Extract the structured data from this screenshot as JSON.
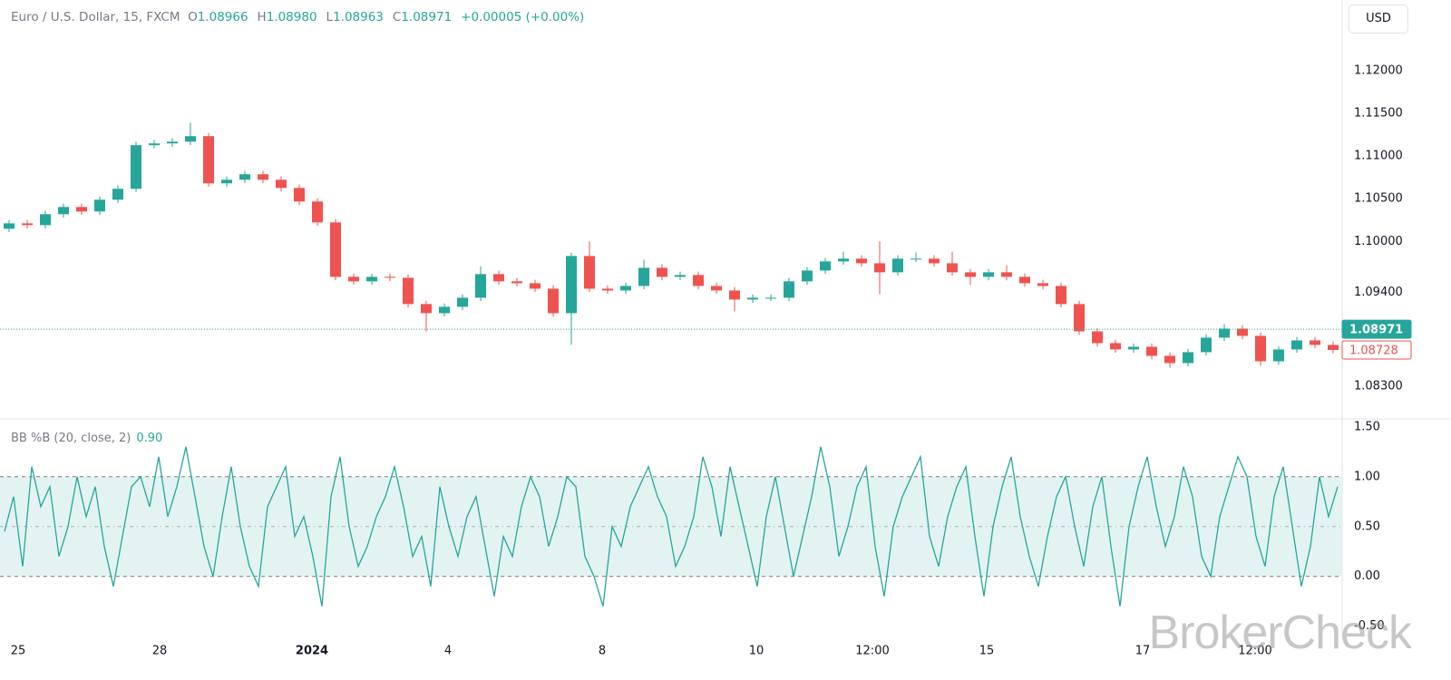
{
  "header": {
    "symbol": "Euro / U.S. Dollar, 15, FXCM",
    "fields": [
      {
        "key": "O",
        "value": "1.08966"
      },
      {
        "key": "H",
        "value": "1.08980"
      },
      {
        "key": "L",
        "value": "1.08963"
      },
      {
        "key": "C",
        "value": "1.08971"
      }
    ],
    "change": "+0.00005 (+0.00%)"
  },
  "currency": "USD",
  "watermark": "BrokerCheck",
  "chart_data": [
    {
      "type": "candlestick",
      "up_color": "#26a69a",
      "down_color": "#ef5350",
      "xlim": [
        0,
        74
      ],
      "xticks": [
        {
          "value": 1.0,
          "label": "25"
        },
        {
          "value": 8.8,
          "label": "28"
        },
        {
          "value": 17.2,
          "label": "2024",
          "bold": true
        },
        {
          "value": 24.7,
          "label": "4"
        },
        {
          "value": 33.2,
          "label": "8"
        },
        {
          "value": 41.7,
          "label": "10"
        },
        {
          "value": 48.1,
          "label": "12:00"
        },
        {
          "value": 54.4,
          "label": "15"
        },
        {
          "value": 63.0,
          "label": "17"
        },
        {
          "value": 69.2,
          "label": "12:00"
        }
      ],
      "ylim": [
        1.0792,
        1.1283
      ],
      "yticks": [
        {
          "value": 1.12,
          "label": "1.12000"
        },
        {
          "value": 1.115,
          "label": "1.11500"
        },
        {
          "value": 1.11,
          "label": "1.11000"
        },
        {
          "value": 1.105,
          "label": "1.10500"
        },
        {
          "value": 1.1,
          "label": "1.10000"
        },
        {
          "value": 1.094,
          "label": "1.09400"
        },
        {
          "value": 1.083,
          "label": "1.08300"
        }
      ],
      "price_markers": [
        {
          "value": 1.08971,
          "label": "1.08971",
          "color": "#26a69a",
          "dotted_line": true
        },
        {
          "value": 1.08728,
          "label": "1.08728",
          "color": "#ef5350",
          "dotted_line": false
        }
      ],
      "open": [
        1.10149,
        1.10212,
        1.10191,
        1.10319,
        1.10404,
        1.10351,
        1.10489,
        1.10617,
        1.11128,
        1.11149,
        1.1117,
        1.11234,
        1.10681,
        1.10723,
        1.10787,
        1.10723,
        1.10627,
        1.10468,
        1.10223,
        1.09585,
        1.09532,
        1.09585,
        1.09574,
        1.09266,
        1.09159,
        1.09234,
        1.0934,
        1.09617,
        1.09532,
        1.0951,
        1.09446,
        1.09159,
        1.09829,
        1.09446,
        1.09425,
        1.09478,
        1.09691,
        1.09585,
        1.09606,
        1.09478,
        1.09425,
        1.09319,
        1.0934,
        1.0934,
        1.09532,
        1.09659,
        1.09766,
        1.09798,
        1.09744,
        1.09638,
        1.09798,
        1.09798,
        1.09744,
        1.09638,
        1.09585,
        1.09638,
        1.09585,
        1.0951,
        1.09478,
        1.09266,
        1.08946,
        1.08808,
        1.08734,
        1.08765,
        1.08659,
        1.08574,
        1.08702,
        1.08872,
        1.08978,
        1.08893,
        1.08595,
        1.08734,
        1.0884,
        1.08787
      ],
      "high": [
        1.10252,
        1.10252,
        1.10359,
        1.10444,
        1.10444,
        1.10529,
        1.10657,
        1.11168,
        1.11189,
        1.1121,
        1.11393,
        1.11274,
        1.10763,
        1.10827,
        1.10827,
        1.10763,
        1.10667,
        1.10508,
        1.10263,
        1.09625,
        1.09625,
        1.09625,
        1.09614,
        1.09306,
        1.09274,
        1.0938,
        1.09708,
        1.09657,
        1.09572,
        1.0955,
        1.09486,
        1.09869,
        1.1,
        1.09486,
        1.09518,
        1.09787,
        1.09731,
        1.09646,
        1.09646,
        1.09518,
        1.09465,
        1.0938,
        1.0938,
        1.09572,
        1.09699,
        1.09806,
        1.0988,
        1.09838,
        1.1,
        1.09838,
        1.0987,
        1.09838,
        1.0988,
        1.09678,
        1.09678,
        1.0972,
        1.09625,
        1.0955,
        1.09518,
        1.09306,
        1.08986,
        1.08848,
        1.08805,
        1.08805,
        1.08699,
        1.08742,
        1.08912,
        1.0903,
        1.09018,
        1.08933,
        1.08774,
        1.0888,
        1.0888,
        1.08827
      ],
      "low": [
        1.10109,
        1.10151,
        1.10151,
        1.10279,
        1.10311,
        1.10311,
        1.10449,
        1.10577,
        1.11088,
        1.11109,
        1.1113,
        1.10641,
        1.10641,
        1.10683,
        1.10683,
        1.10587,
        1.10428,
        1.10183,
        1.09545,
        1.09492,
        1.09492,
        1.09534,
        1.09226,
        1.08946,
        1.09119,
        1.09194,
        1.093,
        1.09492,
        1.0947,
        1.09406,
        1.09119,
        1.08787,
        1.09406,
        1.09385,
        1.09385,
        1.09438,
        1.09545,
        1.09545,
        1.09438,
        1.09385,
        1.0918,
        1.09279,
        1.093,
        1.093,
        1.09492,
        1.09619,
        1.09726,
        1.09704,
        1.0938,
        1.09598,
        1.09758,
        1.09704,
        1.09598,
        1.0949,
        1.09545,
        1.09545,
        1.0947,
        1.09438,
        1.09226,
        1.08906,
        1.08768,
        1.08694,
        1.08694,
        1.08619,
        1.0852,
        1.08534,
        1.08662,
        1.08832,
        1.08853,
        1.0854,
        1.08555,
        1.08694,
        1.08747,
        1.08688
      ],
      "close": [
        1.10212,
        1.10191,
        1.10319,
        1.10404,
        1.10351,
        1.10489,
        1.10617,
        1.11128,
        1.11149,
        1.1117,
        1.11234,
        1.10681,
        1.10723,
        1.10787,
        1.10723,
        1.10627,
        1.10468,
        1.10223,
        1.09585,
        1.09532,
        1.09585,
        1.09574,
        1.09266,
        1.09159,
        1.09234,
        1.0934,
        1.09617,
        1.09532,
        1.0951,
        1.09446,
        1.09159,
        1.09829,
        1.09446,
        1.09425,
        1.09478,
        1.09691,
        1.09585,
        1.09606,
        1.09478,
        1.09425,
        1.09319,
        1.0934,
        1.0934,
        1.09532,
        1.09659,
        1.09766,
        1.09798,
        1.09744,
        1.09638,
        1.09798,
        1.09798,
        1.09744,
        1.09638,
        1.09585,
        1.09638,
        1.09585,
        1.0951,
        1.09478,
        1.09266,
        1.08946,
        1.08808,
        1.08734,
        1.08765,
        1.08659,
        1.08574,
        1.08702,
        1.08872,
        1.08978,
        1.08893,
        1.08595,
        1.08734,
        1.0884,
        1.08787,
        1.08728
      ]
    },
    {
      "type": "line",
      "name": "BB %B (20, close, 2)",
      "last_value": "0.90",
      "color": "#26a69a",
      "band_color": "#e3f3f1",
      "upper_band": 1,
      "middle_band": 0.5,
      "lower_band": 0,
      "xlim": [
        0,
        74
      ],
      "ylim": [
        -0.63,
        1.58
      ],
      "yticks": [
        {
          "value": 1.5,
          "label": "1.50"
        },
        {
          "value": 1,
          "label": "1.00"
        },
        {
          "value": 0.5,
          "label": "0.50"
        },
        {
          "value": 0,
          "label": "0.00"
        },
        {
          "value": -0.5,
          "label": "-0.50"
        }
      ],
      "values": [
        0.45,
        0.8,
        0.1,
        1.1,
        0.7,
        0.9,
        0.2,
        0.5,
        1.0,
        0.6,
        0.9,
        0.3,
        -0.1,
        0.4,
        0.9,
        1.0,
        0.7,
        1.2,
        0.6,
        0.9,
        1.3,
        0.8,
        0.3,
        0.0,
        0.6,
        1.1,
        0.5,
        0.1,
        -0.1,
        0.7,
        0.9,
        1.1,
        0.4,
        0.6,
        0.2,
        -0.3,
        0.8,
        1.2,
        0.5,
        0.1,
        0.3,
        0.6,
        0.8,
        1.1,
        0.7,
        0.2,
        0.4,
        -0.1,
        0.9,
        0.5,
        0.2,
        0.6,
        0.8,
        0.3,
        -0.2,
        0.4,
        0.2,
        0.7,
        1.0,
        0.8,
        0.3,
        0.6,
        1.0,
        0.9,
        0.2,
        0.0,
        -0.3,
        0.5,
        0.3,
        0.7,
        0.9,
        1.1,
        0.8,
        0.6,
        0.1,
        0.3,
        0.6,
        1.2,
        0.9,
        0.4,
        1.1,
        0.7,
        0.3,
        -0.1,
        0.6,
        1.0,
        0.5,
        0.0,
        0.4,
        0.8,
        1.3,
        0.9,
        0.2,
        0.5,
        0.9,
        1.1,
        0.3,
        -0.2,
        0.5,
        0.8,
        1.0,
        1.2,
        0.4,
        0.1,
        0.6,
        0.9,
        1.1,
        0.4,
        -0.2,
        0.5,
        0.9,
        1.2,
        0.6,
        0.2,
        -0.1,
        0.4,
        0.8,
        1.0,
        0.5,
        0.1,
        0.7,
        1.0,
        0.3,
        -0.3,
        0.5,
        0.9,
        1.2,
        0.7,
        0.3,
        0.6,
        1.1,
        0.8,
        0.2,
        0.0,
        0.6,
        0.9,
        1.2,
        1.0,
        0.4,
        0.1,
        0.8,
        1.1,
        0.5,
        -0.1,
        0.3,
        1.0,
        0.6,
        0.9
      ]
    }
  ]
}
